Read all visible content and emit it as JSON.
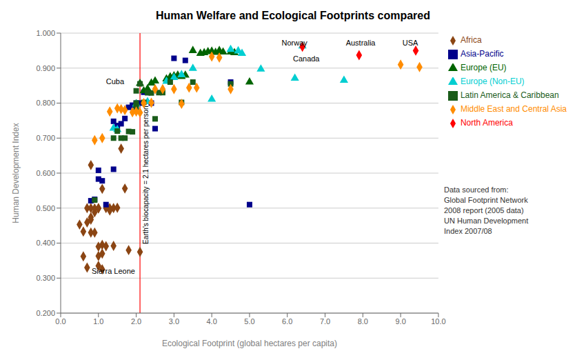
{
  "chart_data": {
    "type": "scatter",
    "title": "Human Welfare and Ecological Footprints compared",
    "xlabel": "Ecological Footprint (global hectares per capita)",
    "ylabel": "Human Development Index",
    "xlim": [
      0.0,
      10.0
    ],
    "ylim": [
      0.2,
      1.0
    ],
    "xticks": [
      {
        "value": 0.0,
        "label": "0.0"
      },
      {
        "value": 1.0,
        "label": "1.0"
      },
      {
        "value": 2.0,
        "label": "2.0"
      },
      {
        "value": 3.0,
        "label": "3.0"
      },
      {
        "value": 4.0,
        "label": "4.0"
      },
      {
        "value": 5.0,
        "label": "5.0"
      },
      {
        "value": 6.0,
        "label": "6.0"
      },
      {
        "value": 7.0,
        "label": "7.0"
      },
      {
        "value": 8.0,
        "label": "8.0"
      },
      {
        "value": 9.0,
        "label": "9.0"
      },
      {
        "value": 10.0,
        "label": "10.0"
      }
    ],
    "yticks": [
      {
        "value": 0.2,
        "label": "0.200"
      },
      {
        "value": 0.3,
        "label": "0.300"
      },
      {
        "value": 0.4,
        "label": "0.400"
      },
      {
        "value": 0.5,
        "label": "0.500"
      },
      {
        "value": 0.6,
        "label": "0.600"
      },
      {
        "value": 0.7,
        "label": "0.700"
      },
      {
        "value": 0.8,
        "label": "0.800"
      },
      {
        "value": 0.9,
        "label": "0.900"
      },
      {
        "value": 1.0,
        "label": "1.000"
      }
    ],
    "grid": true,
    "legend": "right",
    "series": [
      {
        "name": "Africa",
        "color": "#8B4513",
        "marker": "diamond",
        "values": [
          [
            0.5,
            0.453
          ],
          [
            0.6,
            0.362
          ],
          [
            0.6,
            0.433
          ],
          [
            0.7,
            0.459
          ],
          [
            0.7,
            0.5
          ],
          [
            0.8,
            0.467
          ],
          [
            0.8,
            0.43
          ],
          [
            0.8,
            0.5
          ],
          [
            0.8,
            0.474
          ],
          [
            0.9,
            0.499
          ],
          [
            0.9,
            0.488
          ],
          [
            0.9,
            0.43
          ],
          [
            1.0,
            0.499
          ],
          [
            1.0,
            0.5
          ],
          [
            1.0,
            0.39
          ],
          [
            1.0,
            0.363
          ],
          [
            1.1,
            0.395
          ],
          [
            1.1,
            0.37
          ],
          [
            1.1,
            0.555
          ],
          [
            1.2,
            0.5
          ],
          [
            1.2,
            0.391
          ],
          [
            1.3,
            0.5
          ],
          [
            1.3,
            0.493
          ],
          [
            1.4,
            0.5
          ],
          [
            1.4,
            0.392
          ],
          [
            1.5,
            0.501
          ],
          [
            1.6,
            0.67
          ],
          [
            1.7,
            0.556
          ],
          [
            1.8,
            0.38
          ],
          [
            2.1,
            0.375
          ],
          [
            0.7,
            0.33
          ],
          [
            1.0,
            0.335
          ],
          [
            1.1,
            0.325
          ],
          [
            0.8,
            0.623
          ]
        ]
      },
      {
        "name": "Asia-Pacific",
        "color": "#00008B",
        "marker": "square",
        "values": [
          [
            0.8,
            0.521
          ],
          [
            0.9,
            0.525
          ],
          [
            1.0,
            0.608
          ],
          [
            1.0,
            0.583
          ],
          [
            1.1,
            0.578
          ],
          [
            1.2,
            0.51
          ],
          [
            1.4,
            0.611
          ],
          [
            1.4,
            0.748
          ],
          [
            1.5,
            0.736
          ],
          [
            1.6,
            0.741
          ],
          [
            1.7,
            0.756
          ],
          [
            1.8,
            0.788
          ],
          [
            1.9,
            0.794
          ],
          [
            2.0,
            0.8
          ],
          [
            2.1,
            0.8
          ],
          [
            2.2,
            0.831
          ],
          [
            2.3,
            0.83
          ],
          [
            2.4,
            0.8
          ],
          [
            2.5,
            0.727
          ],
          [
            3.0,
            0.928
          ],
          [
            3.3,
            0.922
          ],
          [
            4.5,
            0.86
          ],
          [
            5.0,
            0.51
          ]
        ]
      },
      {
        "name": "Europe (EU)",
        "color": "#006400",
        "marker": "triangle",
        "values": [
          [
            2.1,
            0.856
          ],
          [
            2.2,
            0.835
          ],
          [
            2.3,
            0.841
          ],
          [
            2.4,
            0.857
          ],
          [
            2.5,
            0.863
          ],
          [
            2.8,
            0.869
          ],
          [
            2.9,
            0.875
          ],
          [
            3.0,
            0.878
          ],
          [
            3.1,
            0.88
          ],
          [
            3.2,
            0.876
          ],
          [
            3.3,
            0.88
          ],
          [
            3.5,
            0.95
          ],
          [
            3.7,
            0.942
          ],
          [
            3.8,
            0.944
          ],
          [
            3.9,
            0.947
          ],
          [
            4.0,
            0.948
          ],
          [
            4.1,
            0.945
          ],
          [
            4.2,
            0.95
          ],
          [
            4.3,
            0.946
          ],
          [
            4.5,
            0.946
          ],
          [
            4.6,
            0.944
          ],
          [
            5.0,
            0.86
          ],
          [
            2.0,
            0.798
          ]
        ]
      },
      {
        "name": "Europe (Non-EU)",
        "color": "#00CED1",
        "marker": "triangle",
        "values": [
          [
            1.4,
            0.728
          ],
          [
            1.5,
            0.724
          ],
          [
            2.0,
            0.797
          ],
          [
            2.3,
            0.804
          ],
          [
            2.8,
            0.862
          ],
          [
            3.0,
            0.873
          ],
          [
            3.2,
            0.881
          ],
          [
            3.5,
            0.899
          ],
          [
            4.0,
            0.811
          ],
          [
            4.5,
            0.953
          ],
          [
            4.7,
            0.949
          ],
          [
            4.8,
            0.942
          ],
          [
            5.3,
            0.897
          ],
          [
            6.2,
            0.871
          ],
          [
            7.5,
            0.865
          ],
          [
            6.4,
            0.963
          ]
        ]
      },
      {
        "name": "Latin America & Caribbean",
        "color": "#1a5c1a",
        "marker": "square",
        "values": [
          [
            0.9,
            0.523
          ],
          [
            1.4,
            0.7
          ],
          [
            1.5,
            0.72
          ],
          [
            1.6,
            0.7
          ],
          [
            1.7,
            0.7
          ],
          [
            1.8,
            0.719
          ],
          [
            1.9,
            0.718
          ],
          [
            2.0,
            0.788
          ],
          [
            2.0,
            0.8
          ],
          [
            2.0,
            0.835
          ],
          [
            2.1,
            0.855
          ],
          [
            2.2,
            0.802
          ],
          [
            2.3,
            0.83
          ],
          [
            2.4,
            0.829
          ],
          [
            2.5,
            0.755
          ],
          [
            2.6,
            0.83
          ],
          [
            2.7,
            0.83
          ],
          [
            2.9,
            0.86
          ],
          [
            3.2,
            0.802
          ],
          [
            3.5,
            0.86
          ],
          [
            4.5,
            0.855
          ]
        ]
      },
      {
        "name": "Middle East and Central Asia",
        "color": "#FF8C00",
        "marker": "diamond",
        "values": [
          [
            0.9,
            0.694
          ],
          [
            1.1,
            0.7
          ],
          [
            1.3,
            0.776
          ],
          [
            1.5,
            0.785
          ],
          [
            1.6,
            0.783
          ],
          [
            1.7,
            0.78
          ],
          [
            1.9,
            0.774
          ],
          [
            2.0,
            0.776
          ],
          [
            2.1,
            0.773
          ],
          [
            2.2,
            0.8
          ],
          [
            2.4,
            0.801
          ],
          [
            2.5,
            0.84
          ],
          [
            2.7,
            0.84
          ],
          [
            3.0,
            0.84
          ],
          [
            3.2,
            0.798
          ],
          [
            3.4,
            0.844
          ],
          [
            3.6,
            0.844
          ],
          [
            4.0,
            0.933
          ],
          [
            4.2,
            0.93
          ],
          [
            4.5,
            0.84
          ],
          [
            9.0,
            0.91
          ],
          [
            9.5,
            0.903
          ]
        ]
      },
      {
        "name": "North America",
        "color": "#FF0000",
        "marker": "diamond",
        "values": [
          [
            6.4,
            0.961
          ],
          [
            7.9,
            0.937
          ],
          [
            9.4,
            0.95
          ]
        ]
      }
    ],
    "vlines": [
      {
        "x": 2.1,
        "label": "Earth's biocapacity = 2.1 hectares per person",
        "color": "red"
      }
    ],
    "annotations": [
      {
        "text": "Cuba",
        "x": 1.2,
        "y": 0.862
      },
      {
        "text": "Sierra Leone",
        "x": 0.82,
        "y": 0.32
      },
      {
        "text": "Norway",
        "x": 5.85,
        "y": 0.972
      },
      {
        "text": "Canada",
        "x": 6.15,
        "y": 0.927
      },
      {
        "text": "Australia",
        "x": 7.55,
        "y": 0.972
      },
      {
        "text": "USA",
        "x": 9.05,
        "y": 0.972
      }
    ],
    "source_text": "Data sourced from:\nGlobal Footprint Network\n2008 report (2005 data)\nUN Human Development\nIndex 2007/08"
  }
}
